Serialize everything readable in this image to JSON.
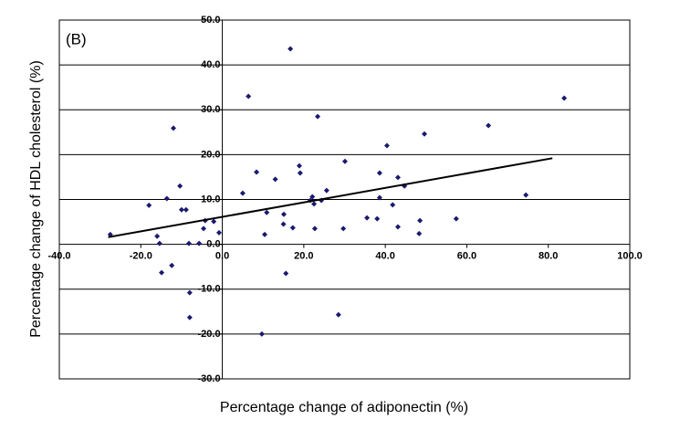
{
  "chart_data": {
    "type": "scatter",
    "annotation": "(B)",
    "xlabel": "Percentage change of adiponectin (%)",
    "ylabel": "Percentage change of HDL cholesterol (%)",
    "xlim": [
      -40,
      100
    ],
    "ylim": [
      -30,
      50
    ],
    "xticks": [
      {
        "value": -40,
        "label": "-40.0"
      },
      {
        "value": -20,
        "label": "-20.0"
      },
      {
        "value": 0,
        "label": "0.0"
      },
      {
        "value": 20,
        "label": "20.0"
      },
      {
        "value": 40,
        "label": "40.0"
      },
      {
        "value": 60,
        "label": "60.0"
      },
      {
        "value": 80,
        "label": "80.0"
      },
      {
        "value": 100,
        "label": "100.0"
      }
    ],
    "yticks": [
      {
        "value": -30,
        "label": "-30.0"
      },
      {
        "value": -20,
        "label": "-20.0"
      },
      {
        "value": -10,
        "label": "-10.0"
      },
      {
        "value": 0,
        "label": "0.0"
      },
      {
        "value": 10,
        "label": "10.0"
      },
      {
        "value": 20,
        "label": "20.0"
      },
      {
        "value": 30,
        "label": "30.0"
      },
      {
        "value": 40,
        "label": "40.0"
      },
      {
        "value": 50,
        "label": "50.0"
      }
    ],
    "grid": true,
    "color": "#1a1a6e",
    "x": [
      -27.5,
      -18.0,
      -16.0,
      -15.4,
      -14.9,
      -13.6,
      -12.0,
      -12.4,
      -10.4,
      -10.0,
      -8.9,
      -8.2,
      -8.0,
      -8.0,
      -5.7,
      -4.6,
      -4.2,
      -2.1,
      -0.8,
      5.0,
      6.4,
      8.4,
      10.4,
      10.9,
      13.0,
      15.0,
      15.1,
      15.6,
      16.7,
      17.3,
      18.9,
      19.1,
      21.6,
      22.1,
      22.5,
      22.7,
      23.4,
      24.3,
      25.6,
      28.5,
      29.7,
      30.1,
      9.7,
      35.5,
      38.0,
      38.6,
      38.6,
      40.4,
      41.8,
      43.1,
      43.1,
      44.7,
      48.3,
      48.5,
      49.6,
      57.4,
      65.3,
      74.5,
      83.9
    ],
    "y": [
      2.2,
      8.7,
      1.8,
      0.2,
      -6.3,
      10.2,
      25.9,
      -4.7,
      13.0,
      7.7,
      7.7,
      0.2,
      -10.8,
      -16.3,
      0.2,
      3.5,
      5.3,
      5.1,
      2.6,
      11.4,
      33.0,
      16.1,
      2.2,
      7.1,
      14.5,
      4.5,
      6.7,
      -6.5,
      43.6,
      3.7,
      17.5,
      15.9,
      9.8,
      10.6,
      9.0,
      3.5,
      28.5,
      9.8,
      12.0,
      -15.7,
      3.5,
      18.5,
      -20.0,
      5.9,
      5.7,
      10.4,
      15.9,
      22.0,
      8.8,
      14.9,
      3.9,
      13.0,
      2.4,
      5.3,
      24.6,
      5.7,
      26.5,
      11.0,
      32.6
    ],
    "trendline": {
      "x": [
        -28,
        81
      ],
      "y": [
        1.6,
        19.2
      ],
      "color": "#000000"
    }
  }
}
